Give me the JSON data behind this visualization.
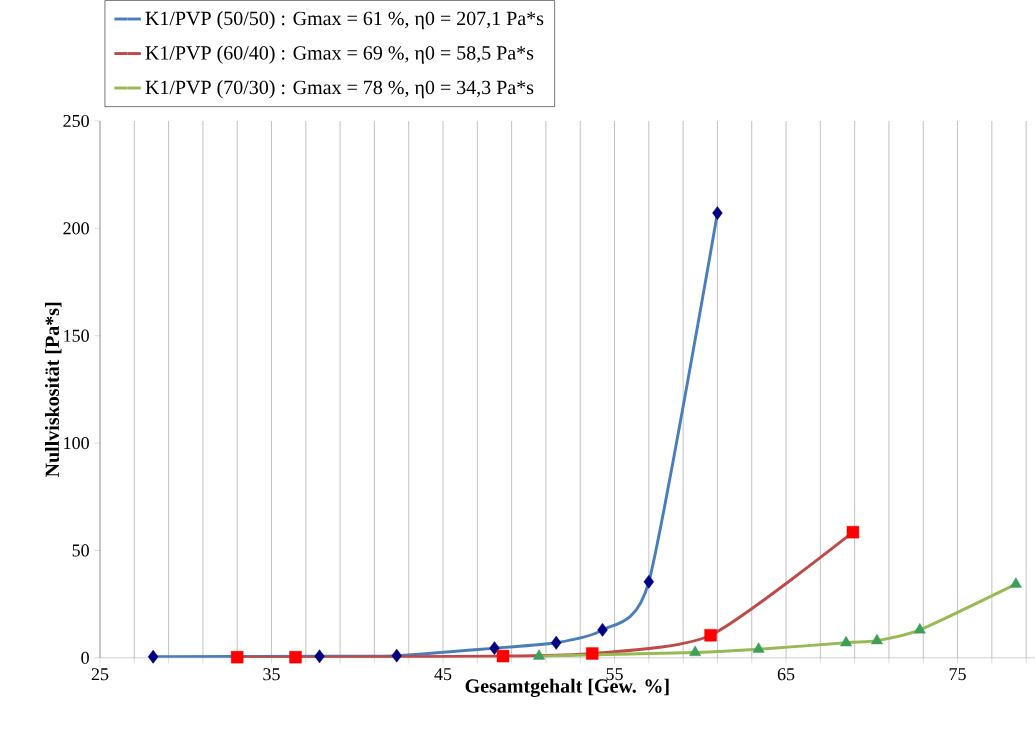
{
  "chart_data": {
    "type": "line",
    "xlabel": "Gesamtgehalt [Gew. %]",
    "ylabel": "Nullviskosität [Pa*s]",
    "xlim": [
      25,
      79.5
    ],
    "ylim": [
      0,
      250
    ],
    "xticks": [
      25,
      {
        "value": 27,
        "label": null
      },
      {
        "value": 29,
        "label": null
      },
      {
        "value": 31,
        "label": null
      },
      {
        "value": 33,
        "label": null
      },
      35,
      {
        "value": 37,
        "label": null
      },
      {
        "value": 39,
        "label": null
      },
      {
        "value": 41,
        "label": null
      },
      {
        "value": 43,
        "label": null
      },
      45,
      {
        "value": 47,
        "label": null
      },
      {
        "value": 49,
        "label": null
      },
      {
        "value": 51,
        "label": null
      },
      {
        "value": 53,
        "label": null
      },
      55,
      {
        "value": 57,
        "label": null
      },
      {
        "value": 59,
        "label": null
      },
      {
        "value": 61,
        "label": null
      },
      {
        "value": 63,
        "label": null
      },
      65,
      {
        "value": 67,
        "label": null
      },
      {
        "value": 69,
        "label": null
      },
      {
        "value": 71,
        "label": null
      },
      {
        "value": 73,
        "label": null
      },
      75,
      {
        "value": 77,
        "label": null
      },
      {
        "value": 79,
        "label": null
      }
    ],
    "yticks": [
      0,
      50,
      100,
      150,
      200,
      250
    ],
    "grid": "x",
    "legend": "top left",
    "line_style": "solid",
    "series": [
      {
        "name": "K1/PVP (50/50) : Gmax = 61 %, η0 = 207,1 Pa*s",
        "color": "#4a7ebb",
        "marker": "diamond",
        "x": [
          28.1,
          37.8,
          42.3,
          48.0,
          51.6,
          54.3,
          57.0,
          61.0
        ],
        "values": [
          0.5,
          0.7,
          1,
          4.5,
          7,
          13,
          35.4,
          207.1
        ]
      },
      {
        "name": "K1/PVP (60/40) : Gmax = 69 %, η0 = 58,5 Pa*s",
        "color": "#be4b48",
        "marker": "square",
        "x": [
          33.0,
          36.4,
          48.5,
          53.7,
          60.6,
          68.9
        ],
        "values": [
          0.3,
          0.3,
          0.8,
          2,
          10.5,
          58.5
        ]
      },
      {
        "name": "K1/PVP (70/30) : Gmax = 78 %, η0 = 34,3 Pa*s",
        "color": "#98b954",
        "marker": "triangle",
        "x": [
          50.6,
          59.7,
          63.4,
          68.5,
          70.3,
          72.8,
          78.4
        ],
        "values": [
          0.8,
          2.5,
          4,
          7,
          8,
          13,
          34.3
        ]
      }
    ]
  }
}
